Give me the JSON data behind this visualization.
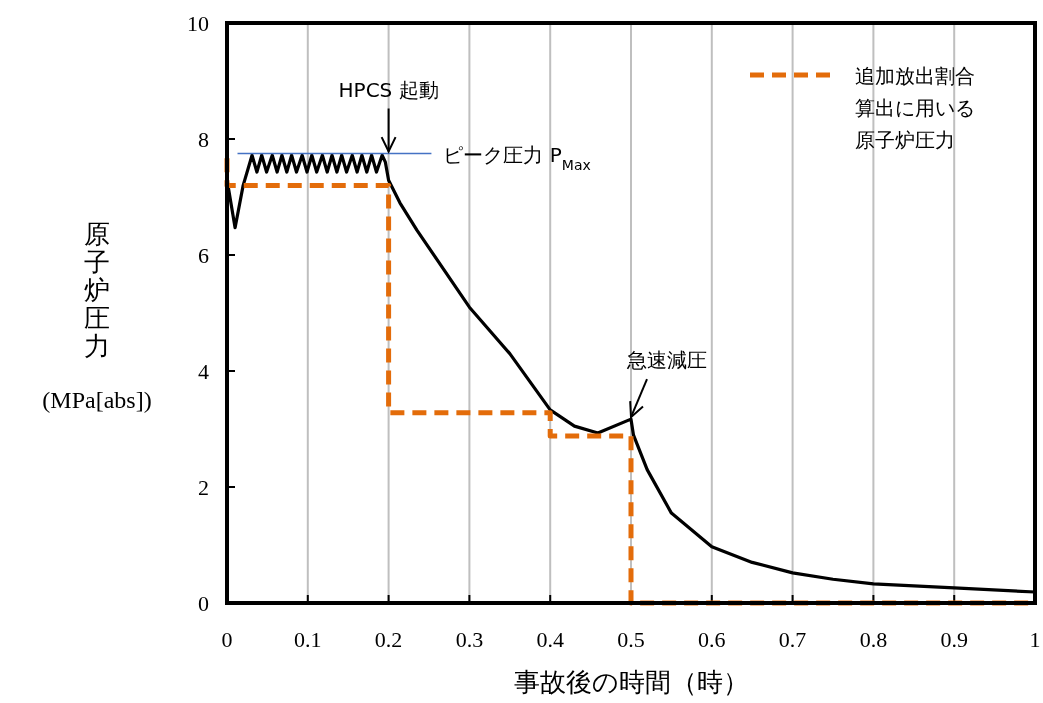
{
  "chart_data": {
    "type": "line",
    "xlabel": "事故後の時間（時）",
    "ylabel": "原子炉圧力\n(MPa[abs])",
    "xlim": [
      0,
      1
    ],
    "ylim": [
      0,
      10
    ],
    "xticks": [
      0,
      0.1,
      0.2,
      0.3,
      0.4,
      0.5,
      0.6,
      0.7,
      0.8,
      0.9,
      1
    ],
    "yticks": [
      0,
      2,
      4,
      6,
      8,
      10
    ],
    "grid": "x",
    "legend": "top right",
    "marker": "none",
    "series": [
      {
        "color": "#000000",
        "line_style": "solid",
        "x": [
          0,
          0.01,
          0.02,
          0.031,
          0.037,
          0.043,
          0.049,
          0.056,
          0.062,
          0.068,
          0.074,
          0.08,
          0.086,
          0.093,
          0.099,
          0.105,
          0.111,
          0.118,
          0.124,
          0.13,
          0.136,
          0.142,
          0.148,
          0.155,
          0.161,
          0.167,
          0.173,
          0.179,
          0.185,
          0.192,
          0.196,
          0.2,
          0.214,
          0.235,
          0.3,
          0.35,
          0.4,
          0.43,
          0.459,
          0.5,
          0.503,
          0.52,
          0.55,
          0.6,
          0.65,
          0.7,
          0.75,
          0.8,
          0.9,
          1
        ],
        "values": [
          7.3,
          6.47,
          7.2,
          7.72,
          7.43,
          7.72,
          7.43,
          7.72,
          7.43,
          7.72,
          7.43,
          7.72,
          7.43,
          7.72,
          7.43,
          7.72,
          7.43,
          7.72,
          7.43,
          7.72,
          7.43,
          7.72,
          7.43,
          7.72,
          7.43,
          7.72,
          7.43,
          7.72,
          7.43,
          7.72,
          7.6,
          7.29,
          6.9,
          6.43,
          5.1,
          4.3,
          3.33,
          3.05,
          2.93,
          3.17,
          2.9,
          2.3,
          1.55,
          0.97,
          0.7,
          0.52,
          0.41,
          0.33,
          0.26,
          0.19
        ]
      },
      {
        "name": "追加放出割合算出に用いる原子炉圧力",
        "color": "#e36c0a",
        "line_style": "dashed",
        "x": [
          0,
          0,
          0.2,
          0.2,
          0.4,
          0.4,
          0.5,
          0.5,
          1
        ],
        "values": [
          7.67,
          7.2,
          7.2,
          3.28,
          3.28,
          2.88,
          2.88,
          0,
          0
        ]
      },
      {
        "color": "#4472c4",
        "line_style": "solid",
        "x": [
          0.013,
          0.253
        ],
        "values": [
          7.75,
          7.75
        ]
      }
    ],
    "annotations": [
      {
        "text": "HPCS 起動",
        "x": 0.2,
        "y": 7.75
      },
      {
        "text": "急速減圧",
        "x": 0.5,
        "y": 3.17
      },
      {
        "text": "ピーク圧力 P$_{Max}$",
        "x": 0.253,
        "y": 7.75
      }
    ]
  }
}
